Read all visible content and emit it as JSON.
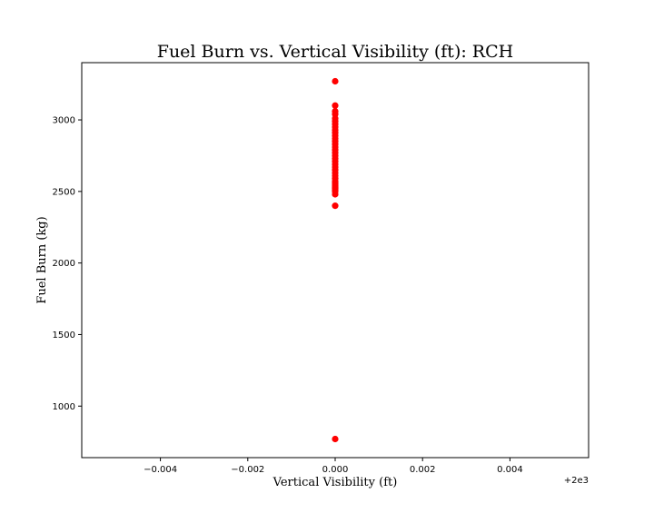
{
  "chart_data": {
    "type": "scatter",
    "title": "Fuel Burn vs. Vertical Visibility (ft): RCH",
    "xlabel": "Vertical Visibility (ft)",
    "ylabel": "Fuel Burn (kg)",
    "x_offset_label": "+2e3",
    "xlim": [
      -0.0058,
      0.0058
    ],
    "ylim": [
      640,
      3400
    ],
    "x_ticks": [
      -0.004,
      -0.002,
      0.0,
      0.002,
      0.004
    ],
    "x_tick_labels": [
      "−0.004",
      "−0.002",
      "0.000",
      "0.002",
      "0.004"
    ],
    "y_ticks": [
      1000,
      1500,
      2000,
      2500,
      3000
    ],
    "y_tick_labels": [
      "1000",
      "1500",
      "2000",
      "2500",
      "3000"
    ],
    "grid": false,
    "marker_color": "#ff0000",
    "series": [
      {
        "x": [
          0,
          0,
          0,
          0,
          0,
          0,
          0,
          0,
          0,
          0,
          0,
          0,
          0,
          0,
          0,
          0,
          0,
          0,
          0,
          0,
          0,
          0,
          0,
          0,
          0,
          0,
          0,
          0,
          0,
          0,
          0,
          0,
          0,
          0,
          0,
          0,
          0
        ],
        "y": [
          3270,
          3100,
          3060,
          3040,
          3010,
          2990,
          2970,
          2950,
          2930,
          2910,
          2890,
          2870,
          2850,
          2830,
          2810,
          2790,
          2770,
          2750,
          2730,
          2710,
          2690,
          2670,
          2650,
          2630,
          2610,
          2590,
          2570,
          2560,
          2550,
          2540,
          2530,
          2520,
          2510,
          2500,
          2480,
          2400,
          770
        ]
      }
    ]
  }
}
